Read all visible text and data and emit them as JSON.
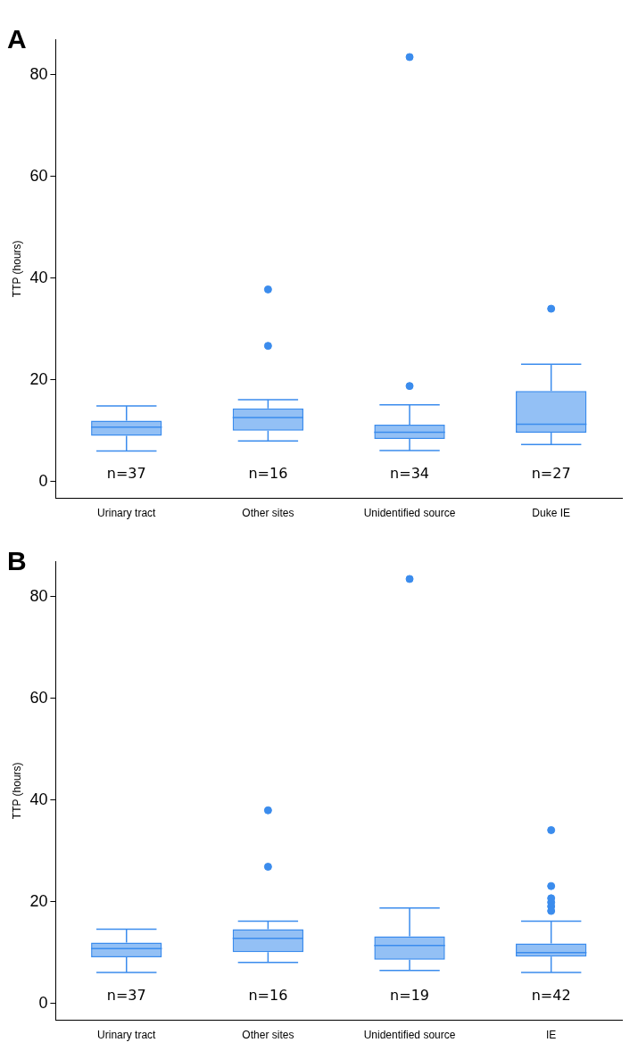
{
  "chart_data": [
    {
      "type": "box",
      "title": "A",
      "ylabel": "TTP (hours)",
      "categories": [
        "Urinary tract",
        "Other sites",
        "Unidentified source",
        "Duke IE"
      ],
      "ylim": [
        -3.3,
        87
      ],
      "yticks": [
        0,
        20,
        40,
        60,
        80
      ],
      "grid": false,
      "series": [
        {
          "color": "#3b8ced",
          "boxes": [
            {
              "low": 6.0,
              "q1": 9.0,
              "median": 10.7,
              "q3": 12.0,
              "high": 14.9
            },
            {
              "low": 8.0,
              "q1": 10.0,
              "median": 12.6,
              "q3": 14.4,
              "high": 16.1,
              "outliers": [
                37.8,
                26.7
              ]
            },
            {
              "low": 6.1,
              "q1": 8.4,
              "median": 9.7,
              "q3": 11.2,
              "high": 15.1,
              "outliers": [
                18.8,
                83.5
              ]
            },
            {
              "low": 7.3,
              "q1": 9.6,
              "median": 11.3,
              "q3": 17.8,
              "high": 23.1,
              "outliers": [
                34.0
              ]
            }
          ]
        }
      ],
      "annotations": [
        "n=37",
        "n=16",
        "n=34",
        "n=27"
      ]
    },
    {
      "type": "box",
      "title": "B",
      "ylabel": "TTP (hours)",
      "categories": [
        "Urinary tract",
        "Other sites",
        "Unidentified source",
        "IE"
      ],
      "ylim": [
        -3.3,
        87
      ],
      "yticks": [
        0,
        20,
        40,
        60,
        80
      ],
      "grid": false,
      "series": [
        {
          "color": "#3b8ced",
          "boxes": [
            {
              "low": 6.1,
              "q1": 9.1,
              "median": 10.8,
              "q3": 12.0,
              "high": 14.6
            },
            {
              "low": 8.1,
              "q1": 10.1,
              "median": 12.8,
              "q3": 14.6,
              "high": 16.2,
              "outliers": [
                38.0,
                26.9
              ]
            },
            {
              "low": 6.5,
              "q1": 8.6,
              "median": 11.4,
              "q3": 13.2,
              "high": 18.8,
              "outliers": [
                83.5
              ]
            },
            {
              "low": 6.1,
              "q1": 9.2,
              "median": 10.0,
              "q3": 11.8,
              "high": 16.2,
              "outliers": [
                34.1,
                23.1,
                20.7,
                19.9,
                19.1,
                18.2
              ]
            }
          ]
        }
      ],
      "annotations": [
        "n=37",
        "n=16",
        "n=19",
        "n=42"
      ]
    }
  ]
}
